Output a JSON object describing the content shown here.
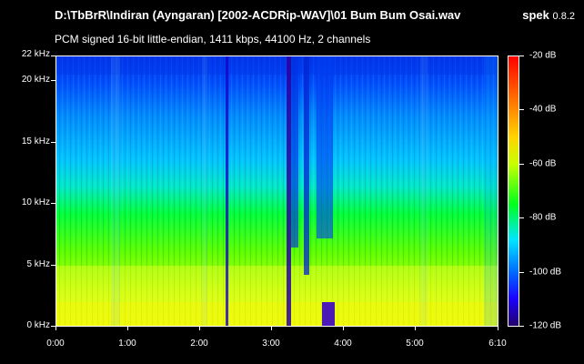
{
  "window": {
    "title": "D:\\TbBrR\\Indiran (Ayngaran) [2002-ACDRip-WAV]\\01 Bum Bum Osai.wav",
    "subtitle": "PCM signed 16-bit little-endian, 1411 kbps, 44100 Hz, 2 channels"
  },
  "brand": {
    "name": "spek",
    "version": "0.8.2"
  },
  "axes": {
    "frequency_labels": [
      "22 kHz",
      "20 kHz",
      "15 kHz",
      "10 kHz",
      "5 kHz",
      "0 kHz"
    ],
    "time_labels": [
      "0:00",
      "1:00",
      "2:00",
      "3:00",
      "4:00",
      "5:00",
      "6:10"
    ],
    "db_labels": [
      "-20 dB",
      "-40 dB",
      "-60 dB",
      "-80 dB",
      "-100 dB",
      "-120 dB"
    ]
  },
  "colors": {
    "background": "#000000",
    "text": "#ffffff"
  }
}
